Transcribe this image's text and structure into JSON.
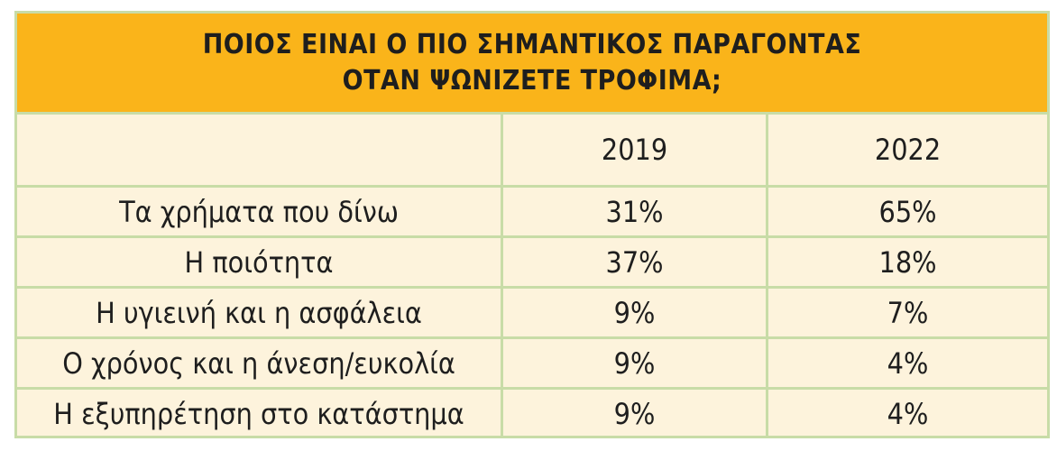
{
  "chart_data": {
    "type": "table",
    "title_lines": [
      "ΠΟΙΟΣ ΕΙΝΑΙ Ο ΠΙΟ ΣΗΜΑΝΤΙΚΟΣ ΠΑΡΑΓΟΝΤΑΣ",
      "ΟΤΑΝ ΨΩΝΙΖΕΤΕ ΤΡΟΦΙΜΑ;"
    ],
    "columns": [
      "",
      "2019",
      "2022"
    ],
    "rows": [
      {
        "label": "Τα χρήματα που δίνω",
        "y2019": "31%",
        "y2022": "65%"
      },
      {
        "label": "Η ποιότητα",
        "y2019": "37%",
        "y2022": "18%"
      },
      {
        "label": "Η υγιεινή και η ασφάλεια",
        "y2019": "9%",
        "y2022": "7%"
      },
      {
        "label": "Ο χρόνος και η άνεση/ευκολία",
        "y2019": "9%",
        "y2022": "4%"
      },
      {
        "label": "Η εξυπηρέτηση στο κατάστημα",
        "y2019": "9%",
        "y2022": "4%"
      }
    ],
    "values_2019": [
      31,
      37,
      9,
      9,
      9
    ],
    "values_2022": [
      65,
      18,
      7,
      4,
      4
    ],
    "unit": "%"
  },
  "colors": {
    "header_fill": "#fab41a",
    "body_fill": "#fdf3dc",
    "grid": "#c8dca7",
    "text": "#1e1e1e"
  }
}
